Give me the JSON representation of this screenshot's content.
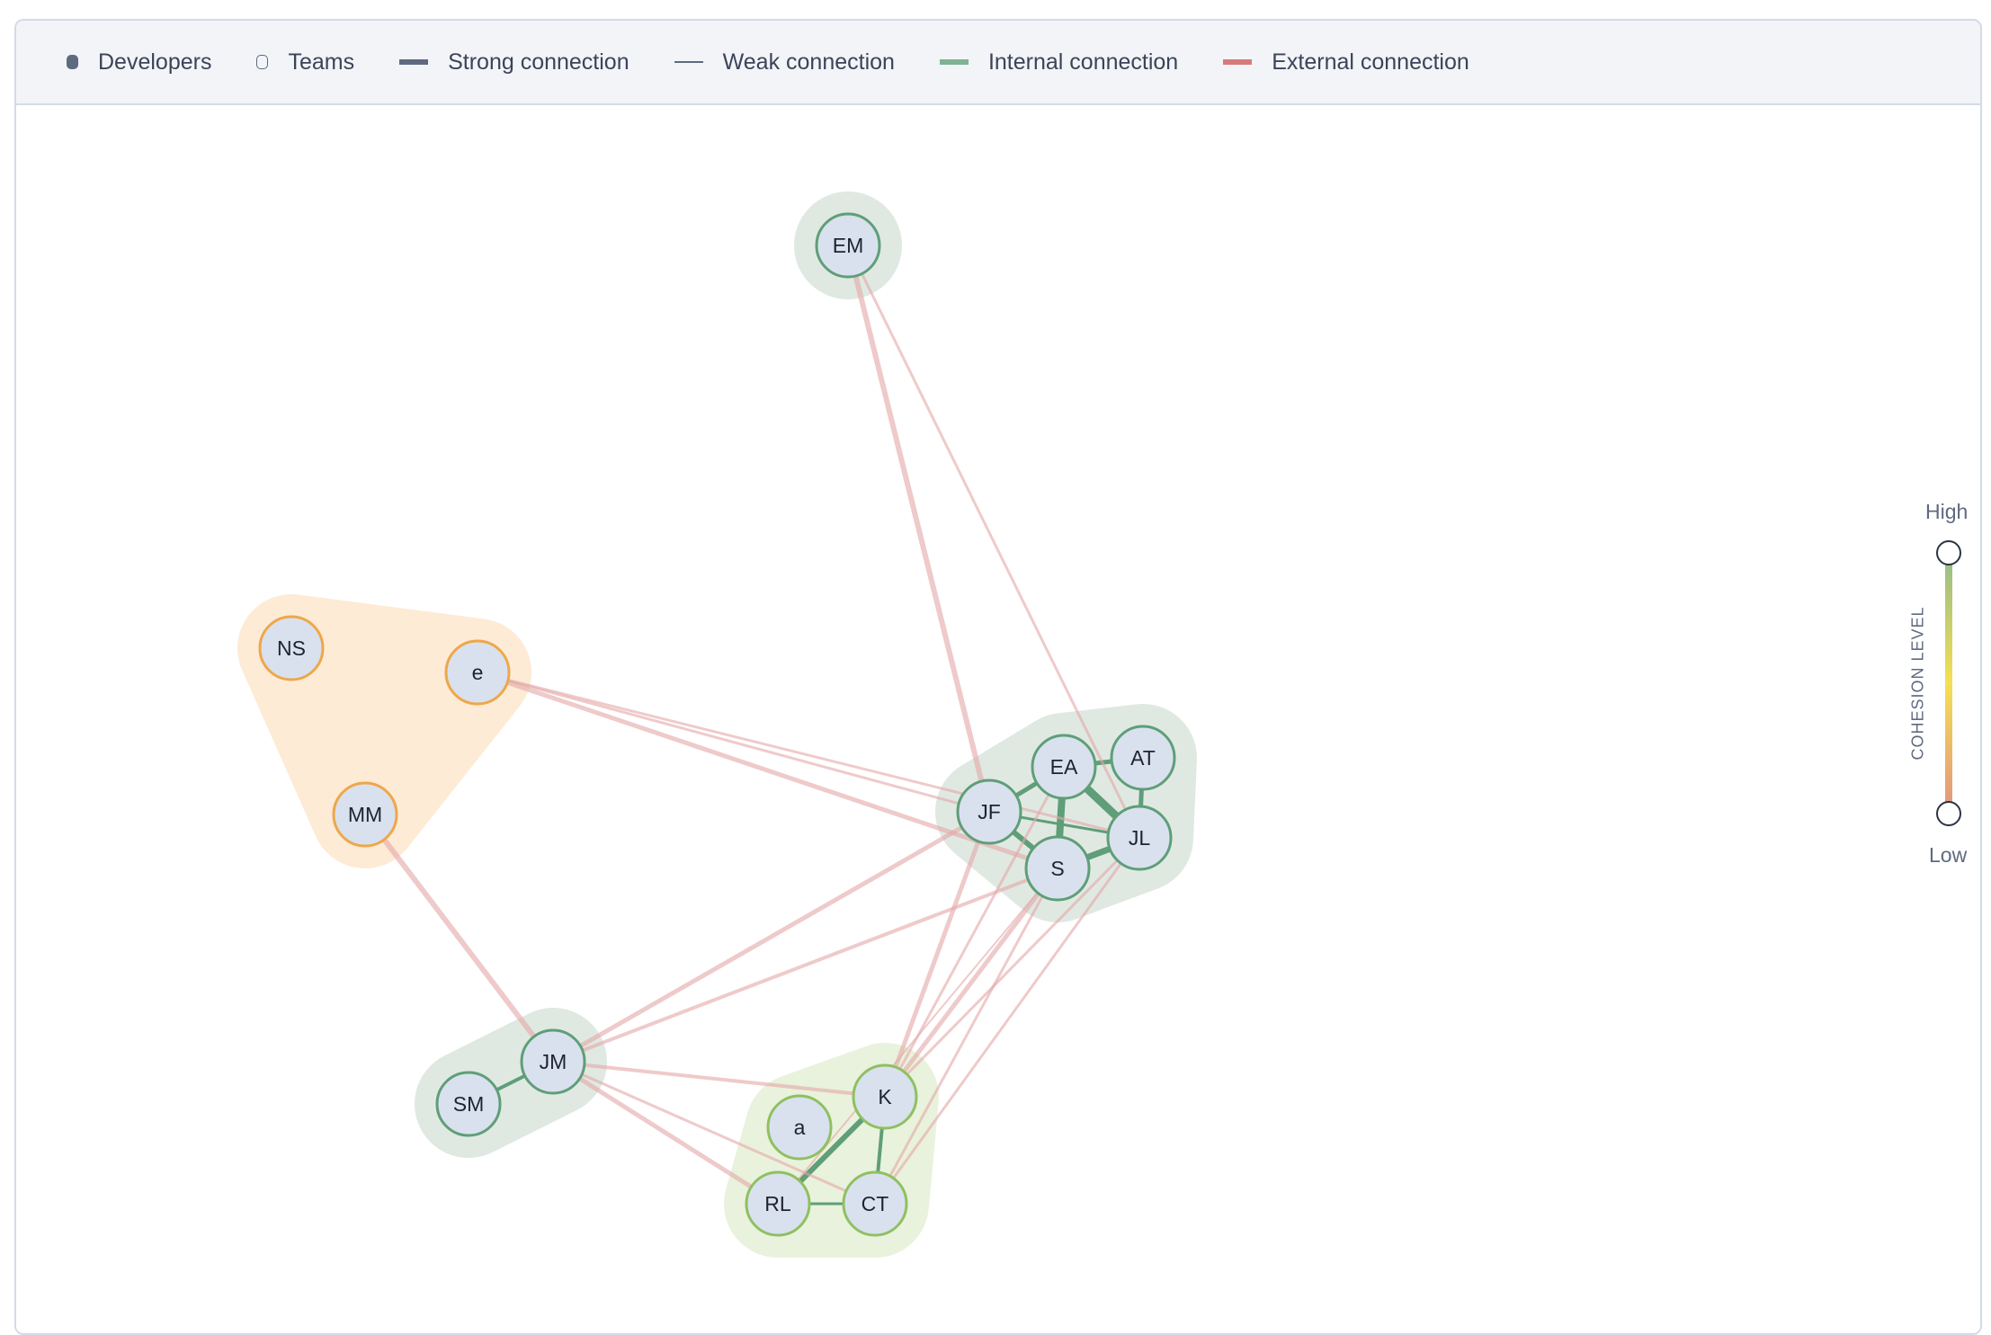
{
  "legend": [
    {
      "label": "Developers",
      "kind": "dot",
      "color": "#5f6a80"
    },
    {
      "label": "Teams",
      "kind": "ring",
      "color": "#5f6a80"
    },
    {
      "label": "Strong connection",
      "kind": "thick",
      "color": "#5f6a80"
    },
    {
      "label": "Weak connection",
      "kind": "thin",
      "color": "#5f6a80"
    },
    {
      "label": "Internal connection",
      "kind": "thick",
      "color": "#7fb394"
    },
    {
      "label": "External connection",
      "kind": "thick",
      "color": "#d97a7a"
    }
  ],
  "cohesion": {
    "title": "COHESION LEVEL",
    "high": "High",
    "low": "Low"
  },
  "colors": {
    "internal": "#5f9e78",
    "external": "#e4a6a6",
    "node_fill": "#d9e1ee"
  },
  "teams": [
    {
      "members": [
        "EM"
      ],
      "fill": "#dfe9e2",
      "stroke": "#5f9e78"
    },
    {
      "members": [
        "NS",
        "e",
        "MM"
      ],
      "fill": "#fdebd6",
      "stroke": "#eea74a"
    },
    {
      "members": [
        "JF",
        "EA",
        "AT",
        "JL",
        "S"
      ],
      "fill": "#dfe9e2",
      "stroke": "#5f9e78"
    },
    {
      "members": [
        "JM",
        "SM"
      ],
      "fill": "#dfe9e2",
      "stroke": "#5f9e78"
    },
    {
      "members": [
        "K",
        "a",
        "RL",
        "CT"
      ],
      "fill": "#e9f2dc",
      "stroke": "#8fc061"
    }
  ],
  "nodes": [
    "EM",
    "NS",
    "e",
    "MM",
    "JF",
    "EA",
    "AT",
    "JL",
    "S",
    "JM",
    "SM",
    "K",
    "a",
    "RL",
    "CT"
  ],
  "edges": [
    [
      "JF",
      "EA",
      "internal",
      5
    ],
    [
      "JF",
      "S",
      "internal",
      6
    ],
    [
      "JF",
      "JL",
      "internal",
      3
    ],
    [
      "EA",
      "AT",
      "internal",
      5
    ],
    [
      "EA",
      "JL",
      "internal",
      9
    ],
    [
      "EA",
      "S",
      "internal",
      8
    ],
    [
      "AT",
      "JL",
      "internal",
      5
    ],
    [
      "S",
      "JL",
      "internal",
      7
    ],
    [
      "JM",
      "SM",
      "internal",
      4
    ],
    [
      "K",
      "RL",
      "internal",
      6
    ],
    [
      "K",
      "CT",
      "internal",
      4
    ],
    [
      "RL",
      "CT",
      "internal",
      3
    ],
    [
      "EM",
      "JF",
      "external",
      6
    ],
    [
      "EM",
      "JL",
      "external",
      3
    ],
    [
      "e",
      "JF",
      "external",
      3
    ],
    [
      "e",
      "S",
      "external",
      5
    ],
    [
      "e",
      "JL",
      "external",
      3
    ],
    [
      "MM",
      "JM",
      "external",
      6
    ],
    [
      "JM",
      "JF",
      "external",
      5
    ],
    [
      "JM",
      "S",
      "external",
      4
    ],
    [
      "JM",
      "K",
      "external",
      4
    ],
    [
      "JM",
      "RL",
      "external",
      5
    ],
    [
      "JM",
      "CT",
      "external",
      3
    ],
    [
      "K",
      "JF",
      "external",
      5
    ],
    [
      "K",
      "EA",
      "external",
      3
    ],
    [
      "K",
      "S",
      "external",
      5
    ],
    [
      "K",
      "JL",
      "external",
      3
    ],
    [
      "CT",
      "S",
      "external",
      3
    ],
    [
      "CT",
      "JL",
      "external",
      3
    ],
    [
      "RL",
      "S",
      "external",
      2
    ]
  ]
}
